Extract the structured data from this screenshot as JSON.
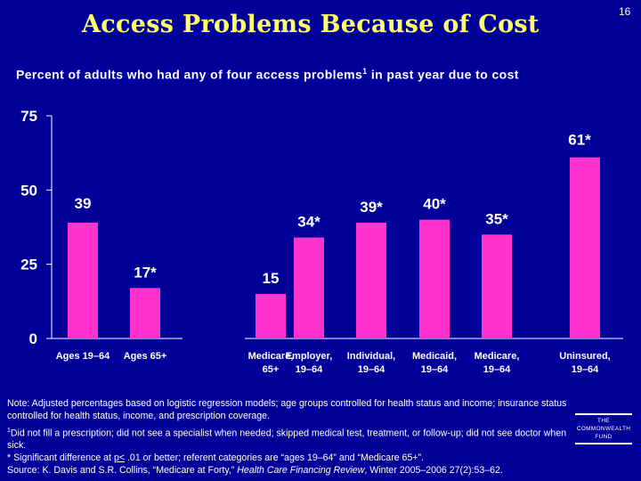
{
  "slide_number": "16",
  "colors": {
    "background": "#000099",
    "title": "#ffff66",
    "bar": "#ff33cc",
    "text": "#ffffff"
  },
  "chart_data": {
    "type": "bar",
    "title": "Access Problems Because of Cost",
    "subtitle_main": "Percent of adults who had any of four access problems",
    "subtitle_sup": "1",
    "subtitle_tail": " in past year due to cost",
    "ylim": [
      0,
      75
    ],
    "yticks": [
      "0",
      "25",
      "50",
      "75"
    ],
    "ytick_values": [
      0,
      25,
      50,
      75
    ],
    "groups": [
      {
        "name": "age",
        "categories": [
          {
            "line1": "Ages 19–64",
            "line2": "",
            "value": 39,
            "label": "39"
          },
          {
            "line1": "Ages 65+",
            "line2": "",
            "value": 17,
            "label": "17*"
          }
        ]
      },
      {
        "name": "insurance",
        "categories": [
          {
            "line1": "Medicare,",
            "line2": "65+",
            "value": 15,
            "label": "15"
          },
          {
            "line1": "Employer,",
            "line2": "19–64",
            "value": 34,
            "label": "34*"
          },
          {
            "line1": "Individual,",
            "line2": "19–64",
            "value": 39,
            "label": "39*"
          },
          {
            "line1": "Medicaid,",
            "line2": "19–64",
            "value": 40,
            "label": "40*"
          },
          {
            "line1": "Medicare,",
            "line2": "19–64",
            "value": 35,
            "label": "35*"
          },
          {
            "line1": "Uninsured,",
            "line2": "19–64",
            "value": 61,
            "label": "61*"
          }
        ]
      }
    ]
  },
  "notes": {
    "note1": "Note: Adjusted percentages based on logistic regression models; age groups controlled for health status and income; insurance status controlled for health status, income, and prescription coverage.",
    "fn1_sup": "1",
    "fn1_text": "Did not fill a prescription; did not see a specialist when needed; skipped medical test, treatment, or follow-up; did not see doctor when sick.",
    "sig_pre": "* Significant difference at ",
    "sig_u": "p<",
    "sig_post": " .01 or better; referent categories are “ages 19–64” and “Medicare 65+”.",
    "source_pre": "Source: K. Davis and S.R. Collins, “Medicare at Forty,” ",
    "source_journal": "Health Care Financing Review",
    "source_post": ", Winter 2005–2006 27(2):53–62."
  },
  "logo": {
    "line1": "THE",
    "line2": "COMMONWEALTH",
    "line3": "FUND"
  }
}
